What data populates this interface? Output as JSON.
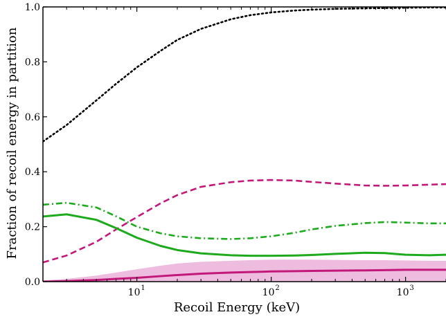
{
  "chart_data": {
    "type": "line",
    "title": "",
    "xlabel": "Recoil Energy (keV)",
    "ylabel": "Fraction of recoil energy in partition",
    "xscale": "log",
    "xlim": [
      2,
      2000
    ],
    "ylim": [
      0,
      1.0
    ],
    "grid": false,
    "legend": "none",
    "x_ticks": [
      {
        "value": 10,
        "label_base": "10",
        "label_exp": "1"
      },
      {
        "value": 100,
        "label_base": "10",
        "label_exp": "2"
      },
      {
        "value": 1000,
        "label_base": "10",
        "label_exp": "3"
      }
    ],
    "y_ticks": [
      {
        "value": 0.0,
        "label": "0.0"
      },
      {
        "value": 0.2,
        "label": "0.2"
      },
      {
        "value": 0.4,
        "label": "0.4"
      },
      {
        "value": 0.6,
        "label": "0.6"
      },
      {
        "value": 0.8,
        "label": "0.8"
      },
      {
        "value": 1.0,
        "label": "1.0"
      }
    ],
    "series": [
      {
        "style": "dotted",
        "color": "#000000",
        "x": [
          2,
          3,
          5,
          7,
          10,
          15,
          20,
          30,
          50,
          70,
          100,
          150,
          200,
          300,
          500,
          700,
          1000,
          1500,
          2000
        ],
        "y": [
          0.51,
          0.57,
          0.66,
          0.72,
          0.78,
          0.84,
          0.88,
          0.92,
          0.955,
          0.97,
          0.98,
          0.987,
          0.99,
          0.993,
          0.995,
          0.996,
          0.997,
          0.998,
          0.998
        ]
      },
      {
        "style": "dashed",
        "color": "#c2187a",
        "x": [
          2,
          3,
          5,
          7,
          10,
          15,
          20,
          30,
          50,
          70,
          100,
          150,
          200,
          300,
          500,
          700,
          1000,
          1500,
          2000
        ],
        "y": [
          0.07,
          0.095,
          0.145,
          0.19,
          0.235,
          0.285,
          0.315,
          0.345,
          0.362,
          0.368,
          0.37,
          0.368,
          0.363,
          0.357,
          0.35,
          0.349,
          0.35,
          0.353,
          0.355
        ]
      },
      {
        "style": "dashdot",
        "color": "#1daa1d",
        "x": [
          2,
          3,
          5,
          7,
          10,
          15,
          20,
          30,
          50,
          70,
          100,
          150,
          200,
          300,
          500,
          700,
          1000,
          1500,
          2000
        ],
        "y": [
          0.28,
          0.287,
          0.27,
          0.238,
          0.2,
          0.176,
          0.165,
          0.158,
          0.155,
          0.158,
          0.165,
          0.178,
          0.19,
          0.203,
          0.213,
          0.217,
          0.215,
          0.212,
          0.212
        ]
      },
      {
        "style": "solid",
        "color": "#1daa1d",
        "x": [
          2,
          3,
          5,
          7,
          10,
          15,
          20,
          30,
          50,
          70,
          100,
          150,
          200,
          300,
          500,
          700,
          1000,
          1500,
          2000
        ],
        "y": [
          0.237,
          0.245,
          0.225,
          0.195,
          0.16,
          0.13,
          0.115,
          0.103,
          0.096,
          0.094,
          0.094,
          0.095,
          0.097,
          0.101,
          0.105,
          0.104,
          0.098,
          0.096,
          0.098
        ]
      },
      {
        "style": "solid",
        "color": "#c2187a",
        "band_color": "#e8a6d3",
        "x": [
          2,
          3,
          5,
          7,
          10,
          15,
          20,
          30,
          50,
          70,
          100,
          150,
          200,
          300,
          500,
          700,
          1000,
          1500,
          2000
        ],
        "y": [
          0.0,
          0.002,
          0.006,
          0.01,
          0.014,
          0.02,
          0.024,
          0.029,
          0.033,
          0.035,
          0.037,
          0.038,
          0.039,
          0.04,
          0.041,
          0.042,
          0.043,
          0.043,
          0.043
        ],
        "y_upper": [
          0.004,
          0.01,
          0.022,
          0.033,
          0.045,
          0.058,
          0.066,
          0.072,
          0.076,
          0.078,
          0.08,
          0.08,
          0.08,
          0.079,
          0.078,
          0.078,
          0.077,
          0.076,
          0.076
        ],
        "y_lower": [
          0.0,
          0.0,
          0.0,
          0.0,
          0.0,
          0.0,
          0.0,
          0.0,
          0.0,
          0.0,
          0.0,
          0.0,
          0.0,
          0.0,
          0.0,
          0.0,
          0.0,
          0.0,
          0.0
        ]
      }
    ]
  }
}
